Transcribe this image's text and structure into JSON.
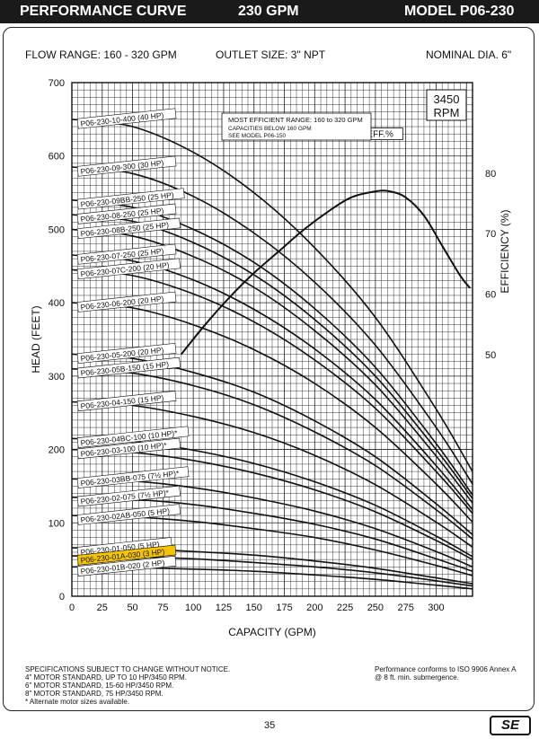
{
  "header": {
    "left": "PERFORMANCE CURVE",
    "center": "230 GPM",
    "right": "MODEL  P06-230"
  },
  "info": {
    "flow_range": "FLOW RANGE: 160 - 320 GPM",
    "outlet": "OUTLET SIZE: 3\" NPT",
    "nominal": "NOMINAL DIA. 6\""
  },
  "footer": {
    "line1": "SPECIFICATIONS SUBJECT TO CHANGE WITHOUT NOTICE.",
    "line2": "4\" MOTOR STANDARD, UP TO 10 HP/3450 RPM.",
    "line3": "6\" MOTOR STANDARD, 15-60 HP/3450 RPM.",
    "line4": "8\" MOTOR STANDARD, 75 HP/3450 RPM.",
    "line5": "* Alternate motor sizes available.",
    "right1": "Performance conforms to ISO 9906 Annex A",
    "right2": "@ 8 ft. min. submergence."
  },
  "page_number": "35",
  "logo_text": "SE",
  "chart_data": {
    "type": "line",
    "title": "",
    "xlabel": "CAPACITY (GPM)",
    "ylabel": "HEAD (FEET)",
    "y2label": "EFFICIENCY (%)",
    "xlim": [
      0,
      330
    ],
    "ylim": [
      0,
      700
    ],
    "y2lim": [
      10,
      95
    ],
    "x_ticks": [
      0,
      25,
      50,
      75,
      100,
      125,
      150,
      175,
      200,
      225,
      250,
      275,
      300
    ],
    "y_ticks": [
      0,
      100,
      200,
      300,
      400,
      500,
      600,
      700
    ],
    "y2_ticks": [
      50,
      60,
      70,
      80
    ],
    "grid": true,
    "rpm_label": "3450\nRPM",
    "note": {
      "line1": "MOST EFFICIENT RANGE: 160 to 320 GPM",
      "line2": "CAPACITIES BELOW 160 GPM",
      "line3": "SEE  MODEL P06-150"
    },
    "highlight_series": "P06-230-01A-030 (3 HP)",
    "head_series": [
      {
        "name": "P06-230-10-400 (40 HP)",
        "x": [
          0,
          50,
          100,
          150,
          200,
          250,
          300,
          330
        ],
        "y": [
          650,
          640,
          605,
          550,
          475,
          380,
          255,
          170
        ]
      },
      {
        "name": "P06-230-09-300 (30 HP)",
        "x": [
          0,
          50,
          100,
          150,
          200,
          250,
          300,
          330
        ],
        "y": [
          585,
          576,
          545,
          495,
          428,
          342,
          230,
          153
        ]
      },
      {
        "name": "P06-230-09BB-250 (25 HP)",
        "x": [
          0,
          50,
          100,
          150,
          200,
          250,
          300,
          330
        ],
        "y": [
          540,
          530,
          500,
          455,
          392,
          312,
          208,
          138
        ]
      },
      {
        "name": "P06-230-08-250 (25 HP)",
        "x": [
          0,
          50,
          100,
          150,
          200,
          250,
          300,
          330
        ],
        "y": [
          520,
          511,
          482,
          438,
          377,
          300,
          200,
          133
        ]
      },
      {
        "name": "P06-230-08B-250 (25 HP)",
        "x": [
          0,
          50,
          100,
          150,
          200,
          250,
          300,
          330
        ],
        "y": [
          500,
          491,
          463,
          421,
          362,
          288,
          191,
          127
        ]
      },
      {
        "name": "P06-230-07-250 (25 HP)",
        "x": [
          0,
          50,
          100,
          150,
          200,
          250,
          300,
          330
        ],
        "y": [
          465,
          457,
          431,
          391,
          337,
          268,
          178,
          118
        ]
      },
      {
        "name": "P06-230-07C-200 (20 HP)",
        "x": [
          0,
          50,
          100,
          150,
          200,
          250,
          300,
          330
        ],
        "y": [
          445,
          437,
          412,
          374,
          322,
          256,
          170,
          113
        ]
      },
      {
        "name": "P06-230-06-200 (20 HP)",
        "x": [
          0,
          50,
          100,
          150,
          200,
          250,
          300,
          330
        ],
        "y": [
          400,
          393,
          370,
          336,
          290,
          230,
          153,
          101
        ]
      },
      {
        "name": "P06-230-05-200 (20 HP)",
        "x": [
          0,
          50,
          100,
          150,
          200,
          250,
          300,
          330
        ],
        "y": [
          330,
          324,
          305,
          278,
          239,
          190,
          126,
          84
        ]
      },
      {
        "name": "P06-230-05B-150 (15 HP)",
        "x": [
          0,
          50,
          100,
          150,
          200,
          250,
          300,
          330
        ],
        "y": [
          310,
          304,
          287,
          261,
          224,
          178,
          118,
          78
        ]
      },
      {
        "name": "P06-230-04-150 (15 HP)",
        "x": [
          0,
          50,
          100,
          150,
          200,
          250,
          300,
          330
        ],
        "y": [
          265,
          260,
          245,
          223,
          192,
          152,
          101,
          67
        ]
      },
      {
        "name": "P06-230-04BC-100 (10 HP)*",
        "x": [
          0,
          50,
          100,
          150,
          200,
          250,
          300,
          330
        ],
        "y": [
          215,
          211,
          199,
          181,
          156,
          124,
          82,
          54
        ]
      },
      {
        "name": "P06-230-03-100 (10 HP)*",
        "x": [
          0,
          50,
          100,
          150,
          200,
          250,
          300,
          330
        ],
        "y": [
          200,
          196,
          185,
          168,
          145,
          115,
          76,
          50
        ]
      },
      {
        "name": "P06-230-03BB-075 (7½ HP)*",
        "x": [
          0,
          50,
          100,
          150,
          200,
          250,
          300,
          330
        ],
        "y": [
          160,
          157,
          148,
          134,
          116,
          92,
          61,
          40
        ]
      },
      {
        "name": "P06-230-02-075 (7½ HP)*",
        "x": [
          0,
          50,
          100,
          150,
          200,
          250,
          300,
          330
        ],
        "y": [
          135,
          132,
          125,
          113,
          98,
          78,
          51,
          34
        ]
      },
      {
        "name": "P06-230-02AB-050 (5 HP)",
        "x": [
          0,
          50,
          100,
          150,
          200,
          250,
          300,
          330
        ],
        "y": [
          110,
          108,
          102,
          92,
          80,
          63,
          42,
          28
        ]
      },
      {
        "name": "P06-230-01-050 (5 HP)",
        "x": [
          0,
          50,
          100,
          150,
          200,
          250,
          300,
          330
        ],
        "y": [
          66,
          65,
          61,
          56,
          48,
          38,
          25,
          17
        ]
      },
      {
        "name": "P06-230-01A-030 (3 HP)",
        "x": [
          0,
          50,
          100,
          150,
          200,
          250,
          300,
          330
        ],
        "y": [
          55,
          54,
          51,
          46,
          40,
          32,
          21,
          14
        ]
      },
      {
        "name": "P06-230-01B-020 (2 HP)",
        "x": [
          0,
          50,
          100,
          150,
          200,
          250,
          300,
          330
        ],
        "y": [
          40,
          39,
          37,
          34,
          29,
          23,
          15,
          10
        ]
      }
    ],
    "efficiency": {
      "name": "EFF.%",
      "x": [
        90,
        110,
        130,
        150,
        170,
        190,
        210,
        230,
        250,
        262,
        275,
        290,
        305,
        320,
        328
      ],
      "y": [
        50,
        55,
        59.5,
        63.5,
        67,
        70.5,
        73.5,
        76,
        77,
        77,
        76,
        73,
        68,
        63,
        61
      ]
    }
  }
}
